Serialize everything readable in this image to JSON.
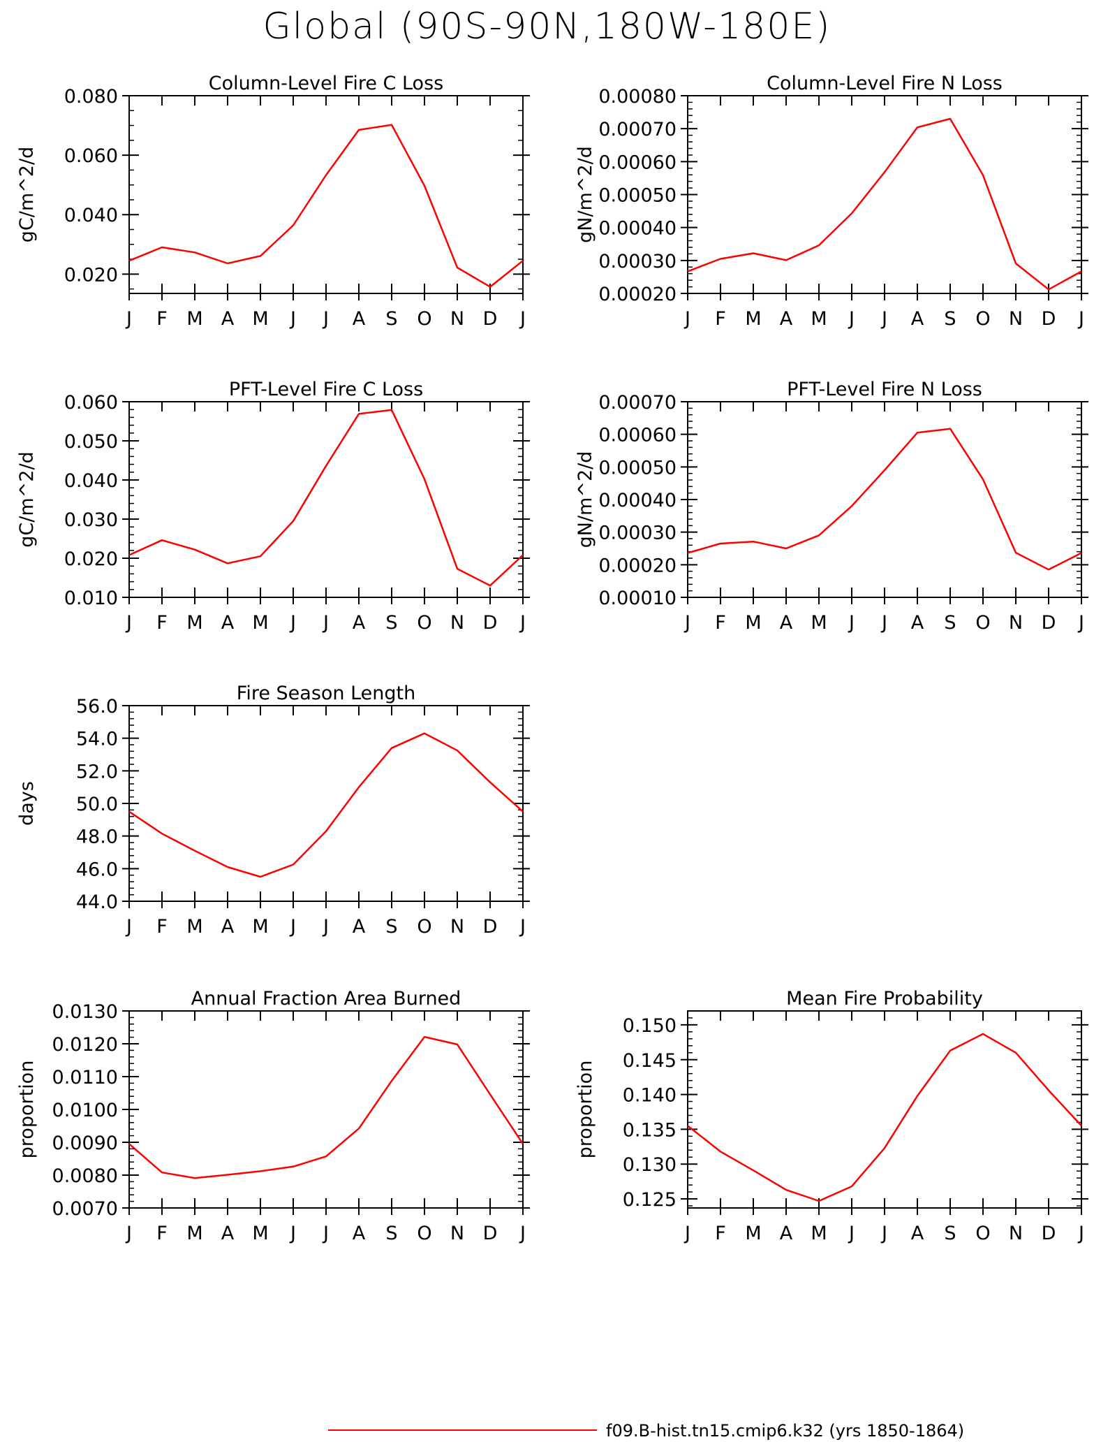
{
  "page": {
    "title": "Global (90S-90N,180W-180E)"
  },
  "legend": {
    "label": "f09.B-hist.tn15.cmip6.k32 (yrs 1850-1864)",
    "color": "#ff0000"
  },
  "chart_data": [
    {
      "type": "line",
      "title": "Column-Level Fire C Loss",
      "ylabel": "gC/m^2/d",
      "x": [
        "J",
        "F",
        "M",
        "A",
        "M",
        "J",
        "J",
        "A",
        "S",
        "O",
        "N",
        "D",
        "J"
      ],
      "series": [
        {
          "values": [
            0.0245,
            0.029,
            0.0273,
            0.0236,
            0.0261,
            0.0364,
            0.0533,
            0.0685,
            0.0702,
            0.0497,
            0.0222,
            0.0157,
            0.0245
          ]
        }
      ],
      "ylim": [
        0.0135,
        0.08
      ],
      "yticks": [
        0.02,
        0.04,
        0.06,
        0.08
      ],
      "ytick_labels": [
        "0.020",
        "0.040",
        "0.060",
        "0.080"
      ],
      "minor_step": 0.005,
      "color": "#ff0000"
    },
    {
      "type": "line",
      "title": "Column-Level Fire N Loss",
      "ylabel": "gN/m^2/d",
      "x": [
        "J",
        "F",
        "M",
        "A",
        "M",
        "J",
        "J",
        "A",
        "S",
        "O",
        "N",
        "D",
        "J"
      ],
      "series": [
        {
          "values": [
            0.000267,
            0.000305,
            0.000322,
            0.000301,
            0.000346,
            0.000443,
            0.000568,
            0.000704,
            0.00073,
            0.000559,
            0.000291,
            0.000212,
            0.000267
          ]
        }
      ],
      "ylim": [
        0.0002,
        0.0008
      ],
      "yticks": [
        0.0002,
        0.0003,
        0.0004,
        0.0005,
        0.0006,
        0.0007,
        0.0008
      ],
      "ytick_labels": [
        "0.00020",
        "0.00030",
        "0.00040",
        "0.00050",
        "0.00060",
        "0.00070",
        "0.00080"
      ],
      "minor_step": 2e-05,
      "color": "#ff0000"
    },
    {
      "type": "line",
      "title": "PFT-Level Fire C Loss",
      "ylabel": "gC/m^2/d",
      "x": [
        "J",
        "F",
        "M",
        "A",
        "M",
        "J",
        "J",
        "A",
        "S",
        "O",
        "N",
        "D",
        "J"
      ],
      "series": [
        {
          "values": [
            0.0208,
            0.0246,
            0.0222,
            0.0187,
            0.0205,
            0.0295,
            0.0436,
            0.0569,
            0.0579,
            0.0402,
            0.0173,
            0.013,
            0.0208
          ]
        }
      ],
      "ylim": [
        0.01,
        0.06
      ],
      "yticks": [
        0.01,
        0.02,
        0.03,
        0.04,
        0.05,
        0.06
      ],
      "ytick_labels": [
        "0.010",
        "0.020",
        "0.030",
        "0.040",
        "0.050",
        "0.060"
      ],
      "minor_step": 0.002,
      "color": "#ff0000"
    },
    {
      "type": "line",
      "title": "PFT-Level Fire N Loss",
      "ylabel": "gN/m^2/d",
      "x": [
        "J",
        "F",
        "M",
        "A",
        "M",
        "J",
        "J",
        "A",
        "S",
        "O",
        "N",
        "D",
        "J"
      ],
      "series": [
        {
          "values": [
            0.000236,
            0.000265,
            0.000271,
            0.00025,
            0.00029,
            0.00038,
            0.00049,
            0.000605,
            0.000617,
            0.000462,
            0.000237,
            0.000185,
            0.000236
          ]
        }
      ],
      "ylim": [
        0.0001,
        0.0007
      ],
      "yticks": [
        0.0001,
        0.0002,
        0.0003,
        0.0004,
        0.0005,
        0.0006,
        0.0007
      ],
      "ytick_labels": [
        "0.00010",
        "0.00020",
        "0.00030",
        "0.00040",
        "0.00050",
        "0.00060",
        "0.00070"
      ],
      "minor_step": 2e-05,
      "color": "#ff0000"
    },
    {
      "type": "line",
      "title": "Fire Season Length",
      "ylabel": "days",
      "x": [
        "J",
        "F",
        "M",
        "A",
        "M",
        "J",
        "J",
        "A",
        "S",
        "O",
        "N",
        "D",
        "J"
      ],
      "series": [
        {
          "values": [
            49.5,
            48.15,
            47.1,
            46.1,
            45.5,
            46.25,
            48.3,
            51.0,
            53.4,
            54.3,
            53.25,
            51.3,
            49.5
          ]
        }
      ],
      "ylim": [
        44.0,
        56.0
      ],
      "yticks": [
        44.0,
        46.0,
        48.0,
        50.0,
        52.0,
        54.0,
        56.0
      ],
      "ytick_labels": [
        "44.0",
        "46.0",
        "48.0",
        "50.0",
        "52.0",
        "54.0",
        "56.0"
      ],
      "minor_step": 0.4,
      "color": "#ff0000"
    },
    {
      "type": "line",
      "title": "Annual Fraction Area Burned",
      "ylabel": "proportion",
      "x": [
        "J",
        "F",
        "M",
        "A",
        "M",
        "J",
        "J",
        "A",
        "S",
        "O",
        "N",
        "D",
        "J"
      ],
      "series": [
        {
          "values": [
            0.00895,
            0.00808,
            0.00791,
            0.00801,
            0.00812,
            0.00826,
            0.00857,
            0.00942,
            0.01087,
            0.01221,
            0.01198,
            0.01046,
            0.00895
          ]
        }
      ],
      "ylim": [
        0.007,
        0.013
      ],
      "yticks": [
        0.007,
        0.008,
        0.009,
        0.01,
        0.011,
        0.012,
        0.013
      ],
      "ytick_labels": [
        "0.0070",
        "0.0080",
        "0.0090",
        "0.0100",
        "0.0110",
        "0.0120",
        "0.0130"
      ],
      "minor_step": 0.0002,
      "color": "#ff0000"
    },
    {
      "type": "line",
      "title": "Mean Fire Probability",
      "ylabel": "proportion",
      "x": [
        "J",
        "F",
        "M",
        "A",
        "M",
        "J",
        "J",
        "A",
        "S",
        "O",
        "N",
        "D",
        "J"
      ],
      "series": [
        {
          "values": [
            0.1355,
            0.1318,
            0.1291,
            0.1263,
            0.1247,
            0.1268,
            0.1323,
            0.1398,
            0.1463,
            0.1487,
            0.146,
            0.1406,
            0.1355
          ]
        }
      ],
      "ylim": [
        0.1237,
        0.152
      ],
      "yticks": [
        0.125,
        0.13,
        0.135,
        0.14,
        0.145,
        0.15
      ],
      "ytick_labels": [
        "0.125",
        "0.130",
        "0.135",
        "0.140",
        "0.145",
        "0.150"
      ],
      "minor_step": 0.001,
      "color": "#ff0000"
    }
  ]
}
